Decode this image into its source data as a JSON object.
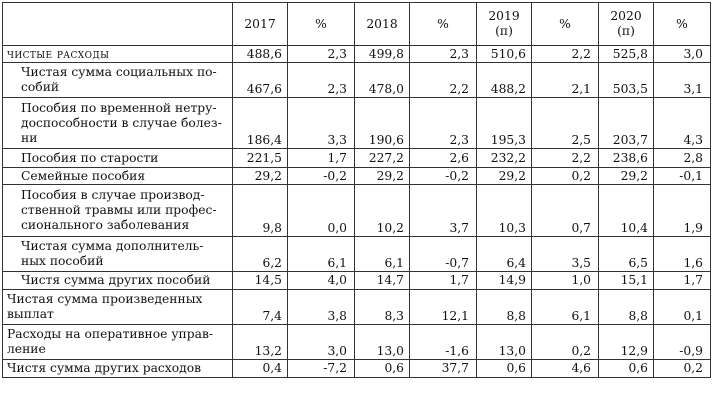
{
  "table": {
    "headers": {
      "y2017": "2017",
      "p1": "%",
      "y2018": "2018",
      "p2": "%",
      "y2019": "2019",
      "y2019_note": "(п)",
      "p3": "%",
      "y2020": "2020",
      "y2020_note": "(п)",
      "p4": "%"
    },
    "rows": [
      {
        "label": "чистые расходы",
        "v": [
          "488,6",
          "2,3",
          "499,8",
          "2,3",
          "510,6",
          "2,2",
          "525,8",
          "3,0"
        ]
      },
      {
        "label": "Чистая сумма социальных по-\nсобий",
        "v": [
          "467,6",
          "2,3",
          "478,0",
          "2,2",
          "488,2",
          "2,1",
          "503,5",
          "3,1"
        ]
      },
      {
        "label": "Пособия по временной нетру-\nдоспособности в случае болез-\nни",
        "v": [
          "186,4",
          "3,3",
          "190,6",
          "2,3",
          "195,3",
          "2,5",
          "203,7",
          "4,3"
        ]
      },
      {
        "label": "Пособия по старости",
        "v": [
          "221,5",
          "1,7",
          "227,2",
          "2,6",
          "232,2",
          "2,2",
          "238,6",
          "2,8"
        ]
      },
      {
        "label": "Семейные пособия",
        "v": [
          "29,2",
          "-0,2",
          "29,2",
          "-0,2",
          "29,2",
          "0,2",
          "29,2",
          "-0,1"
        ]
      },
      {
        "label": "Пособия в случае производ-\nственной травмы или профес-\nсионального заболевания",
        "v": [
          "9,8",
          "0,0",
          "10,2",
          "3,7",
          "10,3",
          "0,7",
          "10,4",
          "1,9"
        ]
      },
      {
        "label": "Чистая сумма дополнитель-\nных пособий",
        "v": [
          "6,2",
          "6,1",
          "6,1",
          "-0,7",
          "6,4",
          "3,5",
          "6,5",
          "1,6"
        ]
      },
      {
        "label": "Чистя сумма других пособий",
        "v": [
          "14,5",
          "4,0",
          "14,7",
          "1,7",
          "14,9",
          "1,0",
          "15,1",
          "1,7"
        ]
      },
      {
        "label": "Чистая сумма произведенных\nвыплат",
        "v": [
          "7,4",
          "3,8",
          "8,3",
          "12,1",
          "8,8",
          "6,1",
          "8,8",
          "0,1"
        ]
      },
      {
        "label": "Расходы на оперативное управ-\nление",
        "v": [
          "13,2",
          "3,0",
          "13,0",
          "-1,6",
          "13,0",
          "0,2",
          "12,9",
          "-0,9"
        ]
      },
      {
        "label": "Чистя сумма других расходов",
        "v": [
          "0,4",
          "-7,2",
          "0,6",
          "37,7",
          "0,6",
          "4,6",
          "0,6",
          "0,2"
        ]
      }
    ]
  }
}
